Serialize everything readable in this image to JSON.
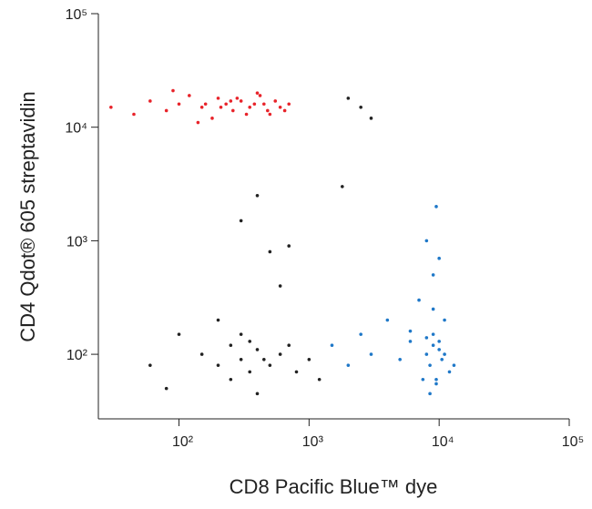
{
  "chart_data": {
    "type": "scatter",
    "x_label": "CD8 Pacific Blue™ dye",
    "y_label": "CD4 Qdot® 605 streptavidin",
    "log_x": true,
    "log_y": true,
    "xlim": [
      24,
      100000
    ],
    "ylim": [
      27,
      100000
    ],
    "xticks": [
      {
        "value": 100,
        "label": "10²"
      },
      {
        "value": 1000,
        "label": "10³"
      },
      {
        "value": 10000,
        "label": "10⁴"
      },
      {
        "value": 100000,
        "label": "10⁵"
      }
    ],
    "yticks": [
      {
        "value": 100,
        "label": "10²"
      },
      {
        "value": 1000,
        "label": "10³"
      },
      {
        "value": 10000,
        "label": "10⁴"
      },
      {
        "value": 100000,
        "label": "10⁵"
      }
    ],
    "series": [
      {
        "color": "#e8232a",
        "x": [
          30,
          45,
          60,
          80,
          100,
          120,
          150,
          180,
          200,
          230,
          260,
          300,
          350,
          400,
          450,
          500,
          550,
          600,
          650,
          700,
          90,
          140,
          210,
          280,
          330,
          380,
          420,
          480,
          160,
          250
        ],
        "values": [
          15000,
          13000,
          17000,
          14000,
          16000,
          19000,
          15000,
          12000,
          18000,
          16000,
          14000,
          17000,
          15000,
          20000,
          16000,
          13000,
          17000,
          15000,
          14000,
          16000,
          21000,
          11000,
          15000,
          18000,
          13000,
          16000,
          19000,
          14000,
          16000,
          17000
        ]
      },
      {
        "color": "#1f78c8",
        "x": [
          1500,
          2000,
          2500,
          3000,
          4000,
          5000,
          6000,
          7000,
          8000,
          8500,
          9000,
          9500,
          10000,
          10500,
          11000,
          12000,
          9000,
          8000,
          9500,
          10000,
          7500,
          11000,
          8500,
          9000,
          13000,
          6000,
          9000,
          10000,
          8000,
          9500
        ],
        "values": [
          120,
          80,
          150,
          100,
          200,
          90,
          130,
          300,
          100,
          80,
          150,
          60,
          110,
          90,
          200,
          70,
          500,
          1000,
          2000,
          130,
          60,
          100,
          45,
          250,
          80,
          160,
          120,
          700,
          140,
          55
        ]
      },
      {
        "color": "#222222",
        "x": [
          150,
          200,
          250,
          300,
          350,
          400,
          300,
          250,
          200,
          350,
          450,
          500,
          600,
          700,
          800,
          1000,
          1200,
          100,
          80,
          60,
          300,
          400,
          500,
          2500,
          3000,
          2000,
          1800,
          600,
          700,
          400
        ],
        "values": [
          100,
          80,
          120,
          90,
          70,
          110,
          150,
          60,
          200,
          130,
          90,
          80,
          100,
          120,
          70,
          90,
          60,
          150,
          50,
          80,
          1500,
          2500,
          800,
          15000,
          12000,
          18000,
          3000,
          400,
          900,
          45
        ]
      }
    ]
  }
}
